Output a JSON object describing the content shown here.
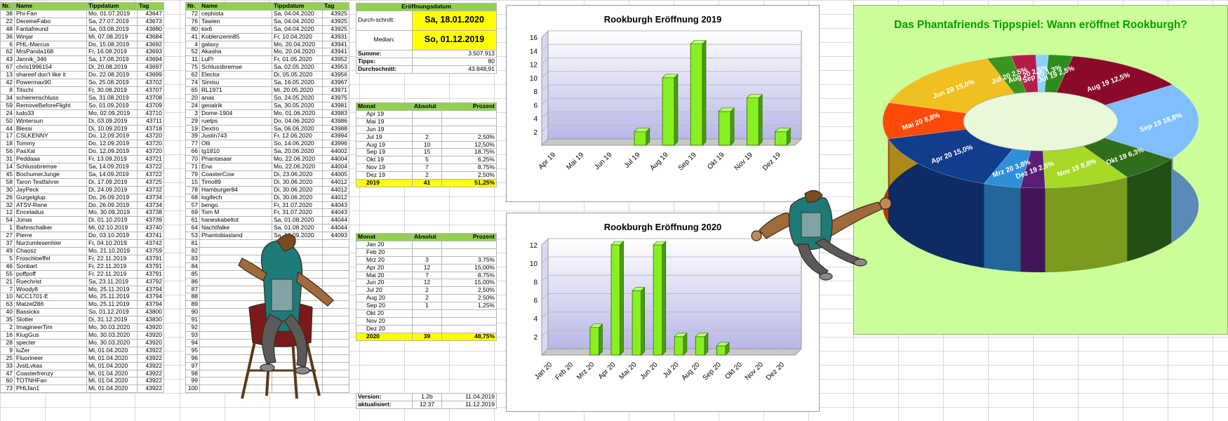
{
  "list1": {
    "headers": [
      "Nr.",
      "Name",
      "Tippdatum",
      "Tag"
    ],
    "rows": [
      [
        "38",
        "Phi-Fan",
        "Mo, 01.07.2019",
        "43647"
      ],
      [
        "22",
        "DereineFabo",
        "Sa, 27.07.2019",
        "43673"
      ],
      [
        "48",
        "Fantafreund",
        "Sa, 03.08.2019",
        "43680"
      ],
      [
        "36",
        "Winjar",
        "Mi, 07.08.2019",
        "43684"
      ],
      [
        "6",
        "PHL-Marcus",
        "Do, 15.08.2019",
        "43692"
      ],
      [
        "62",
        "MrsPanda168",
        "Fr, 16.08.2019",
        "43693"
      ],
      [
        "43",
        "Jannik_346",
        "Sa, 17.08.2019",
        "43694"
      ],
      [
        "67",
        "chris1996154",
        "Di, 20.08.2019",
        "43697"
      ],
      [
        "13",
        "shareef don't like it",
        "Do, 22.08.2019",
        "43699"
      ],
      [
        "42",
        "Powermax90",
        "So, 25.08.2019",
        "43702"
      ],
      [
        "8",
        "Titschi",
        "Fr, 30.08.2019",
        "43707"
      ],
      [
        "34",
        "schierenschluss",
        "Sa, 31.08.2019",
        "43708"
      ],
      [
        "59",
        "RemoveBeforeFlight",
        "So, 01.09.2019",
        "43709"
      ],
      [
        "24",
        "ludo33",
        "Mo, 02.09.2019",
        "43710"
      ],
      [
        "50",
        "Wintersun",
        "Di, 03.09.2019",
        "43711"
      ],
      [
        "44",
        "Blessi",
        "Di, 10.09.2019",
        "43718"
      ],
      [
        "17",
        "CSLKENNY",
        "Do, 12.09.2019",
        "43720"
      ],
      [
        "18",
        "Tommy",
        "Do, 12.09.2019",
        "43720"
      ],
      [
        "56",
        "PasXal",
        "Do, 12.09.2019",
        "43720"
      ],
      [
        "31",
        "Peddaaa",
        "Fr, 13.09.2019",
        "43721"
      ],
      [
        "14",
        "Schlussbremse",
        "Sa, 14.09.2019",
        "43722"
      ],
      [
        "45",
        "BochumerJunge",
        "Sa, 14.09.2019",
        "43722"
      ],
      [
        "58",
        "Taron Testfahrer",
        "Di, 17.09.2019",
        "43725"
      ],
      [
        "30",
        "JayPeck",
        "Di, 24.09.2019",
        "43732"
      ],
      [
        "26",
        "Gurgelglup",
        "Do, 26.09.2019",
        "43734"
      ],
      [
        "32",
        "ATSV-Rene",
        "Do, 26.09.2019",
        "43734"
      ],
      [
        "12",
        "Enceladus",
        "Mo, 30.09.2019",
        "43738"
      ],
      [
        "54",
        "Jonas",
        "Di, 01.10.2019",
        "43739"
      ],
      [
        "1",
        "Bahnschalker",
        "Mi, 02.10.2019",
        "43740"
      ],
      [
        "27",
        "Pierre",
        "Do, 03.10.2019",
        "43741"
      ],
      [
        "37",
        "Nurzumlesenhier",
        "Fr, 04.10.2019",
        "43742"
      ],
      [
        "49",
        "Chaosz",
        "Mo, 21.10.2019",
        "43759"
      ],
      [
        "5",
        "Froschloeffel",
        "Fr, 22.11.2019",
        "43791"
      ],
      [
        "46",
        "Sonbart",
        "Fr, 22.11.2019",
        "43791"
      ],
      [
        "55",
        "poffpoff",
        "Fr, 22.11.2019",
        "43791"
      ],
      [
        "21",
        "Ruechrist",
        "Sa, 23.11.2019",
        "43792"
      ],
      [
        "7",
        "Woody8",
        "Mo, 25.11.2019",
        "43794"
      ],
      [
        "10",
        "NCC1701-E",
        "Mo, 25.11.2019",
        "43794"
      ],
      [
        "63",
        "Matzel286",
        "Mo, 25.11.2019",
        "43794"
      ],
      [
        "40",
        "Bassickx",
        "So, 01.12.2019",
        "43800"
      ],
      [
        "35",
        "Slotter",
        "Di, 31.12.2019",
        "43830"
      ],
      [
        "2",
        "ImagineerTim",
        "Mo, 30.03.2020",
        "43920"
      ],
      [
        "16",
        "KlugGus",
        "Mo, 30.03.2020",
        "43920"
      ],
      [
        "28",
        "specter",
        "Mo, 30.03.2020",
        "43920"
      ],
      [
        "9",
        "luZer",
        "Mi, 01.04.2020",
        "43922"
      ],
      [
        "25",
        "Fluorineer",
        "Mi, 01.04.2020",
        "43922"
      ],
      [
        "33",
        "JvstLvkas",
        "Mi, 01.04.2020",
        "43922"
      ],
      [
        "47",
        "Coasterfrenzy",
        "Mi, 01.04.2020",
        "43922"
      ],
      [
        "60",
        "TOTNHFan",
        "Mi, 01.04.2020",
        "43922"
      ],
      [
        "73",
        "PHLfan1",
        "Mi, 01.04.2020",
        "43922"
      ]
    ]
  },
  "list2": {
    "headers": [
      "Nr.",
      "Name",
      "Tippdatum",
      "Tag"
    ],
    "rows": [
      [
        "72",
        "cephista",
        "Sa, 04.04.2020",
        "43925"
      ],
      [
        "76",
        "Tawien",
        "Sa, 04.04.2020",
        "43925"
      ],
      [
        "80",
        "kix6",
        "Sa, 04.04.2020",
        "43925"
      ],
      [
        "41",
        "Koblenzerin85",
        "Fr, 10.04.2020",
        "43931"
      ],
      [
        "4",
        "galaxy",
        "Mo, 20.04.2020",
        "43941"
      ],
      [
        "52",
        "Akasha",
        "Mo, 20.04.2020",
        "43941"
      ],
      [
        "11",
        "LuPi",
        "Fr, 01.05.2020",
        "43952"
      ],
      [
        "75",
        "Schlussbremse",
        "Sa, 02.05.2020",
        "43953"
      ],
      [
        "62",
        "Elector",
        "Di, 05.05.2020",
        "43956"
      ],
      [
        "74",
        "Simisu",
        "Sa, 16.05.2020",
        "43967"
      ],
      [
        "65",
        "RL1971",
        "Mi, 20.05.2020",
        "43971"
      ],
      [
        "20",
        "anas",
        "So, 24.05.2020",
        "43975"
      ],
      [
        "24",
        "geoalrik",
        "Sa, 30.05.2020",
        "43981"
      ],
      [
        "3",
        "Dome-1904",
        "Mo, 01.06.2020",
        "43983"
      ],
      [
        "29",
        "ruelps",
        "Do, 04.06.2020",
        "43986"
      ],
      [
        "19",
        "Dextro",
        "Sa, 06.06.2020",
        "43988"
      ],
      [
        "39",
        "Justin743",
        "Fr, 12.06.2020",
        "43994"
      ],
      [
        "77",
        "Olli",
        "So, 14.06.2020",
        "43996"
      ],
      [
        "66",
        "tg1810",
        "Sa, 20.06.2020",
        "44002"
      ],
      [
        "70",
        "Phantasaar",
        "Mo, 22.06.2020",
        "44004"
      ],
      [
        "71",
        "Ena",
        "Mo, 22.06.2020",
        "44004"
      ],
      [
        "79",
        "CoasterCow",
        "Di, 23.06.2020",
        "44005"
      ],
      [
        "15",
        "Timo89",
        "Di, 30.06.2020",
        "44012"
      ],
      [
        "78",
        "Hamburger84",
        "Di, 30.06.2020",
        "44012"
      ],
      [
        "68",
        "logifech",
        "Di, 30.06.2020",
        "44012"
      ],
      [
        "57",
        "bengo",
        "Fr, 31.07.2020",
        "44043"
      ],
      [
        "69",
        "Tom M",
        "Fr, 31.07.2020",
        "44043"
      ],
      [
        "61",
        "haneskabeltot",
        "Sa, 01.08.2020",
        "44044"
      ],
      [
        "64",
        "Nachtfalke",
        "Sa, 01.08.2020",
        "44044"
      ],
      [
        "53",
        "Phantobiasland",
        "Sa, 19.09.2020",
        "44093"
      ],
      [
        "81",
        "",
        "",
        ""
      ],
      [
        "82",
        "",
        "",
        ""
      ],
      [
        "83",
        "",
        "",
        ""
      ],
      [
        "84",
        "",
        "",
        ""
      ],
      [
        "85",
        "",
        "",
        ""
      ],
      [
        "86",
        "",
        "",
        ""
      ],
      [
        "87",
        "",
        "",
        ""
      ],
      [
        "88",
        "",
        "",
        ""
      ],
      [
        "89",
        "",
        "",
        ""
      ],
      [
        "90",
        "",
        "",
        ""
      ],
      [
        "91",
        "",
        "",
        ""
      ],
      [
        "92",
        "",
        "",
        ""
      ],
      [
        "93",
        "",
        "",
        ""
      ],
      [
        "94",
        "",
        "",
        ""
      ],
      [
        "95",
        "",
        "",
        ""
      ],
      [
        "96",
        "",
        "",
        ""
      ],
      [
        "97",
        "",
        "",
        ""
      ],
      [
        "98",
        "",
        "",
        ""
      ],
      [
        "99",
        "",
        "",
        ""
      ],
      [
        "100",
        "",
        "",
        ""
      ]
    ]
  },
  "summary": {
    "header": "Eröffnungsdatum",
    "avg_label": "Durch-schnitt:",
    "avg_value": "Sa, 18.01.2020",
    "median_label": "Median:",
    "median_value": "So, 01.12.2019",
    "sum_label": "Summe:",
    "sum_value": "3.507.913",
    "tipps_label": "Tipps:",
    "tipps_value": "80",
    "durch_label": "Durchschnitt:",
    "durch_value": "43.848,91"
  },
  "months2019": {
    "headers": [
      "Monat",
      "Absolut",
      "Prozent"
    ],
    "rows": [
      [
        "Apr 19",
        "",
        ""
      ],
      [
        "Mai 19",
        "",
        ""
      ],
      [
        "Jun 19",
        "",
        ""
      ],
      [
        "Jul 19",
        "2",
        "2,50%"
      ],
      [
        "Aug 19",
        "10",
        "12,50%"
      ],
      [
        "Sep 19",
        "15",
        "18,75%"
      ],
      [
        "Okt 19",
        "5",
        "6,25%"
      ],
      [
        "Nov 19",
        "7",
        "8,75%"
      ],
      [
        "Dez 19",
        "2",
        "2,50%"
      ]
    ],
    "total": [
      "2019",
      "41",
      "51,25%"
    ]
  },
  "months2020": {
    "headers": [
      "Monat",
      "Absolut",
      "Prozent"
    ],
    "rows": [
      [
        "Jan 20",
        "",
        ""
      ],
      [
        "Feb 20",
        "",
        ""
      ],
      [
        "Mrz 20",
        "3",
        "3,75%"
      ],
      [
        "Apr 20",
        "12",
        "15,00%"
      ],
      [
        "Mai 20",
        "7",
        "8,75%"
      ],
      [
        "Jun 20",
        "12",
        "15,00%"
      ],
      [
        "Jul 20",
        "2",
        "2,50%"
      ],
      [
        "Aug 20",
        "2",
        "2,50%"
      ],
      [
        "Sep 20",
        "1",
        "1,25%"
      ],
      [
        "Okt 20",
        "",
        ""
      ],
      [
        "Nov 20",
        "",
        ""
      ],
      [
        "Dez 20",
        "",
        ""
      ]
    ],
    "total": [
      "2020",
      "39",
      "48,75%"
    ]
  },
  "version": {
    "version_label": "Version:",
    "version_value": "1.2b",
    "version_date": "11.04.2019",
    "updated_label": "aktualisiert:",
    "updated_time": "12:37",
    "updated_date": "11.12.2019"
  },
  "colors": {
    "bar": "#88f020",
    "header": "#92d050",
    "highlight": "#ffff00",
    "pie_bg": "#ccff99",
    "title_green": "#00a000"
  },
  "chart_data": [
    {
      "type": "bar",
      "title": "Rookburgh Eröffnung 2019",
      "categories": [
        "Apr 19",
        "Mai 19",
        "Jun 19",
        "Jul 19",
        "Aug 19",
        "Sep 19",
        "Okt 19",
        "Nov 19",
        "Dez 19"
      ],
      "values": [
        0,
        0,
        0,
        2,
        10,
        15,
        5,
        7,
        2
      ],
      "yticks": [
        2,
        4,
        6,
        8,
        10,
        12,
        14,
        16
      ],
      "ylim": [
        0,
        16
      ],
      "grid": true
    },
    {
      "type": "bar",
      "title": "Rookburgh Eröffnung 2020",
      "categories": [
        "Jan 20",
        "Feb 20",
        "Mrz 20",
        "Apr 20",
        "Mai 20",
        "Jun 20",
        "Jul 20",
        "Aug 20",
        "Sep 20",
        "Okt 20",
        "Nov 20",
        "Dez 20"
      ],
      "values": [
        0,
        0,
        3,
        12,
        7,
        12,
        2,
        2,
        1,
        0,
        0,
        0
      ],
      "yticks": [
        2,
        4,
        6,
        8,
        10,
        12
      ],
      "ylim": [
        0,
        12
      ],
      "grid": true
    },
    {
      "type": "pie",
      "title": "Das Phantafriends Tippspiel: Wann eröffnet Rookburgh?",
      "slices": [
        {
          "label": "Jul 19 2,5%",
          "value": 2.5,
          "color": "#2e8b1e"
        },
        {
          "label": "Aug 19 12,5%",
          "value": 12.5,
          "color": "#8b0a2a"
        },
        {
          "label": "Sep 19 18,8%",
          "value": 18.8,
          "color": "#7fbfff"
        },
        {
          "label": "Okt 19 6,3%",
          "value": 6.3,
          "color": "#2f6e1a"
        },
        {
          "label": "Nov 19 8,8%",
          "value": 8.8,
          "color": "#a8d828"
        },
        {
          "label": "Dez 19 2,5%",
          "value": 2.5,
          "color": "#5a1e78"
        },
        {
          "label": "Mrz 20 3,8%",
          "value": 3.8,
          "color": "#2f8fd8"
        },
        {
          "label": "Apr 20 15,0%",
          "value": 15.0,
          "color": "#123c8c"
        },
        {
          "label": "Mai 20 8,8%",
          "value": 8.8,
          "color": "#ff4a0a"
        },
        {
          "label": "Jun 20 15,0%",
          "value": 15.0,
          "color": "#f0c020"
        },
        {
          "label": "Jul 20 2,5%",
          "value": 2.5,
          "color": "#3c961e"
        },
        {
          "label": "Aug 20 2,5%",
          "value": 2.5,
          "color": "#b41e46"
        },
        {
          "label": "Sep 20 1,3%",
          "value": 1.3,
          "color": "#8cd0ff"
        }
      ]
    }
  ]
}
